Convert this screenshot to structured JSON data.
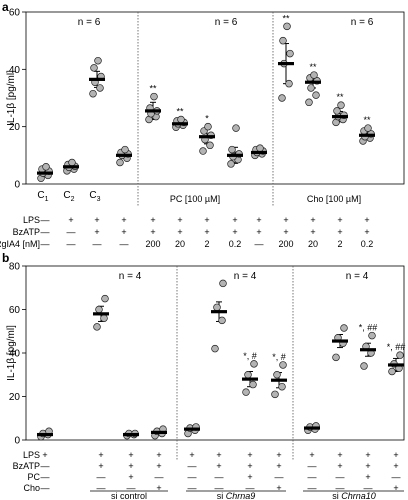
{
  "chart_data": [
    {
      "panel": "a",
      "type": "scatter",
      "ylabel": "IL-1β [pg/ml]",
      "ylim": [
        0,
        60
      ],
      "yticks": [
        0,
        20,
        40,
        60
      ],
      "grid": false,
      "x_labels": [
        {
          "main": "C",
          "sub": "1"
        },
        {
          "main": "C",
          "sub": "2"
        },
        {
          "main": "C",
          "sub": "3"
        },
        {
          "main": "",
          "sub": ""
        },
        {
          "main": "",
          "sub": ""
        },
        {
          "main": "",
          "sub": ""
        },
        {
          "main": "",
          "sub": ""
        },
        {
          "main": "",
          "sub": ""
        },
        {
          "main": "",
          "sub": ""
        },
        {
          "main": "",
          "sub": ""
        },
        {
          "main": "",
          "sub": ""
        },
        {
          "main": "",
          "sub": ""
        },
        {
          "main": "",
          "sub": ""
        }
      ],
      "n_labels": [
        "n = 6",
        "n = 6",
        "n = 6"
      ],
      "groups": [
        {
          "mean": 3.8,
          "sd": 1.0,
          "points": [
            2.0,
            3.0,
            3.8,
            4.5,
            5.2,
            6.0
          ],
          "sig": ""
        },
        {
          "mean": 6.0,
          "sd": 1.0,
          "points": [
            4.6,
            5.2,
            5.8,
            6.2,
            6.8,
            7.5
          ],
          "sig": ""
        },
        {
          "mean": 36.5,
          "sd": 2.8,
          "points": [
            31.5,
            33.5,
            35.5,
            37.5,
            40.5,
            43.0
          ],
          "sig": ""
        },
        {
          "mean": 10.0,
          "sd": 1.0,
          "points": [
            7.5,
            9.0,
            10.0,
            10.5,
            11.0,
            12.0
          ],
          "sig": ""
        },
        {
          "mean": 25.5,
          "sd": 3.0,
          "points": [
            22.5,
            23.5,
            24.5,
            25.5,
            26.5,
            30.5
          ],
          "sig": "**"
        },
        {
          "mean": 21.0,
          "sd": 1.0,
          "points": [
            19.8,
            20.5,
            21.0,
            21.5,
            22.0,
            22.5
          ],
          "sig": "**"
        },
        {
          "mean": 16.5,
          "sd": 2.5,
          "points": [
            11.5,
            13.5,
            15.5,
            17.0,
            18.5,
            20.0
          ],
          "sig": "*"
        },
        {
          "mean": 10.0,
          "sd": 2.8,
          "points": [
            7.0,
            8.5,
            9.5,
            10.5,
            12.0,
            19.5
          ],
          "sig": ""
        },
        {
          "mean": 11.0,
          "sd": 1.0,
          "points": [
            10.0,
            10.5,
            11.0,
            11.5,
            12.0,
            12.5
          ],
          "sig": ""
        },
        {
          "mean": 42.0,
          "sd": 7.0,
          "points": [
            30.0,
            35.0,
            42.0,
            45.5,
            50.0,
            55.0
          ],
          "sig": "**"
        },
        {
          "mean": 35.5,
          "sd": 2.0,
          "points": [
            28.5,
            31.0,
            33.5,
            36.0,
            37.0,
            38.0
          ],
          "sig": "**"
        },
        {
          "mean": 23.5,
          "sd": 1.8,
          "points": [
            21.5,
            22.5,
            23.5,
            24.0,
            25.5,
            27.5
          ],
          "sig": "**"
        },
        {
          "mean": 17.0,
          "sd": 1.5,
          "points": [
            15.0,
            16.0,
            16.5,
            17.5,
            18.5,
            19.5
          ],
          "sig": "**"
        }
      ],
      "section_labels": [
        "PC [100 µM]",
        "Cho [100 µM]"
      ],
      "table": {
        "rows": [
          {
            "label": "LPS",
            "cells": [
              "—",
              "+",
              "+",
              "+",
              "+",
              "+",
              "+",
              "+",
              "+",
              "+",
              "+",
              "+",
              "+"
            ]
          },
          {
            "label": "BzATP",
            "cells": [
              "—",
              "—",
              "+",
              "+",
              "+",
              "+",
              "+",
              "+",
              "+",
              "+",
              "+",
              "+",
              "+"
            ]
          },
          {
            "label": "RgIA4 [nM]",
            "cells": [
              "—",
              "—",
              "—",
              "—",
              "200",
              "20",
              "2",
              "0.2",
              "—",
              "200",
              "20",
              "2",
              "0.2"
            ]
          }
        ]
      }
    },
    {
      "panel": "b",
      "type": "scatter",
      "ylabel": "IL-1β [pg/ml]",
      "ylim": [
        0,
        80
      ],
      "yticks": [
        0,
        20,
        40,
        60,
        80
      ],
      "grid": false,
      "n_labels": [
        "n = 4",
        "n = 4",
        "n = 4"
      ],
      "groups": [
        {
          "mean": 2.5,
          "sd": 1.0,
          "points": [
            1.5,
            2.5,
            3.0,
            4.0
          ],
          "sig": ""
        },
        {
          "mean": 58.0,
          "sd": 3.5,
          "points": [
            52.0,
            56.0,
            60.0,
            65.0
          ],
          "sig": ""
        },
        {
          "mean": 2.5,
          "sd": 0.5,
          "points": [
            2.0,
            2.5,
            3.0,
            3.0
          ],
          "sig": ""
        },
        {
          "mean": 3.5,
          "sd": 1.2,
          "points": [
            2.0,
            3.0,
            4.0,
            5.0
          ],
          "sig": ""
        },
        {
          "mean": 5.0,
          "sd": 0.8,
          "points": [
            3.0,
            4.5,
            5.5,
            6.0
          ],
          "sig": ""
        },
        {
          "mean": 59.0,
          "sd": 4.5,
          "points": [
            42.0,
            55.0,
            61.0,
            72.0
          ],
          "sig": ""
        },
        {
          "mean": 28.0,
          "sd": 3.5,
          "points": [
            22.0,
            25.5,
            30.0,
            35.0
          ],
          "sig": "*, #"
        },
        {
          "mean": 27.5,
          "sd": 3.5,
          "points": [
            21.0,
            24.5,
            30.0,
            34.5
          ],
          "sig": "*, #"
        },
        {
          "mean": 5.5,
          "sd": 0.8,
          "points": [
            4.5,
            5.0,
            6.0,
            6.5
          ],
          "sig": ""
        },
        {
          "mean": 45.5,
          "sd": 3.0,
          "points": [
            38.0,
            44.5,
            47.0,
            51.5
          ],
          "sig": ""
        },
        {
          "mean": 41.5,
          "sd": 3.0,
          "points": [
            34.0,
            40.0,
            43.0,
            48.0
          ],
          "sig": "*, ##"
        },
        {
          "mean": 34.5,
          "sd": 3.0,
          "points": [
            31.5,
            33.0,
            35.0,
            39.0
          ],
          "sig": "*, ##"
        }
      ],
      "table": {
        "rows": [
          {
            "label": "LPS",
            "cells": [
              "+",
              "+",
              "+",
              "+",
              "+",
              "+",
              "+",
              "+",
              "+",
              "+",
              "+",
              "+"
            ]
          },
          {
            "label": "BzATP",
            "cells": [
              "—",
              "+",
              "+",
              "+",
              "—",
              "+",
              "+",
              "+",
              "—",
              "+",
              "+",
              "+"
            ]
          },
          {
            "label": "PC",
            "cells": [
              "—",
              "—",
              "+",
              "—",
              "—",
              "—",
              "+",
              "—",
              "—",
              "—",
              "+",
              "—"
            ]
          },
          {
            "label": "Cho",
            "cells": [
              "—",
              "—",
              "—",
              "+",
              "—",
              "—",
              "—",
              "+",
              "—",
              "—",
              "—",
              "+"
            ]
          }
        ]
      },
      "section_labels": [
        {
          "prefix": "si ",
          "name": "control",
          "italic": false
        },
        {
          "prefix": "si ",
          "name": "Chrna9",
          "italic": true
        },
        {
          "prefix": "si ",
          "name": "Chrna10",
          "italic": true
        }
      ]
    }
  ]
}
